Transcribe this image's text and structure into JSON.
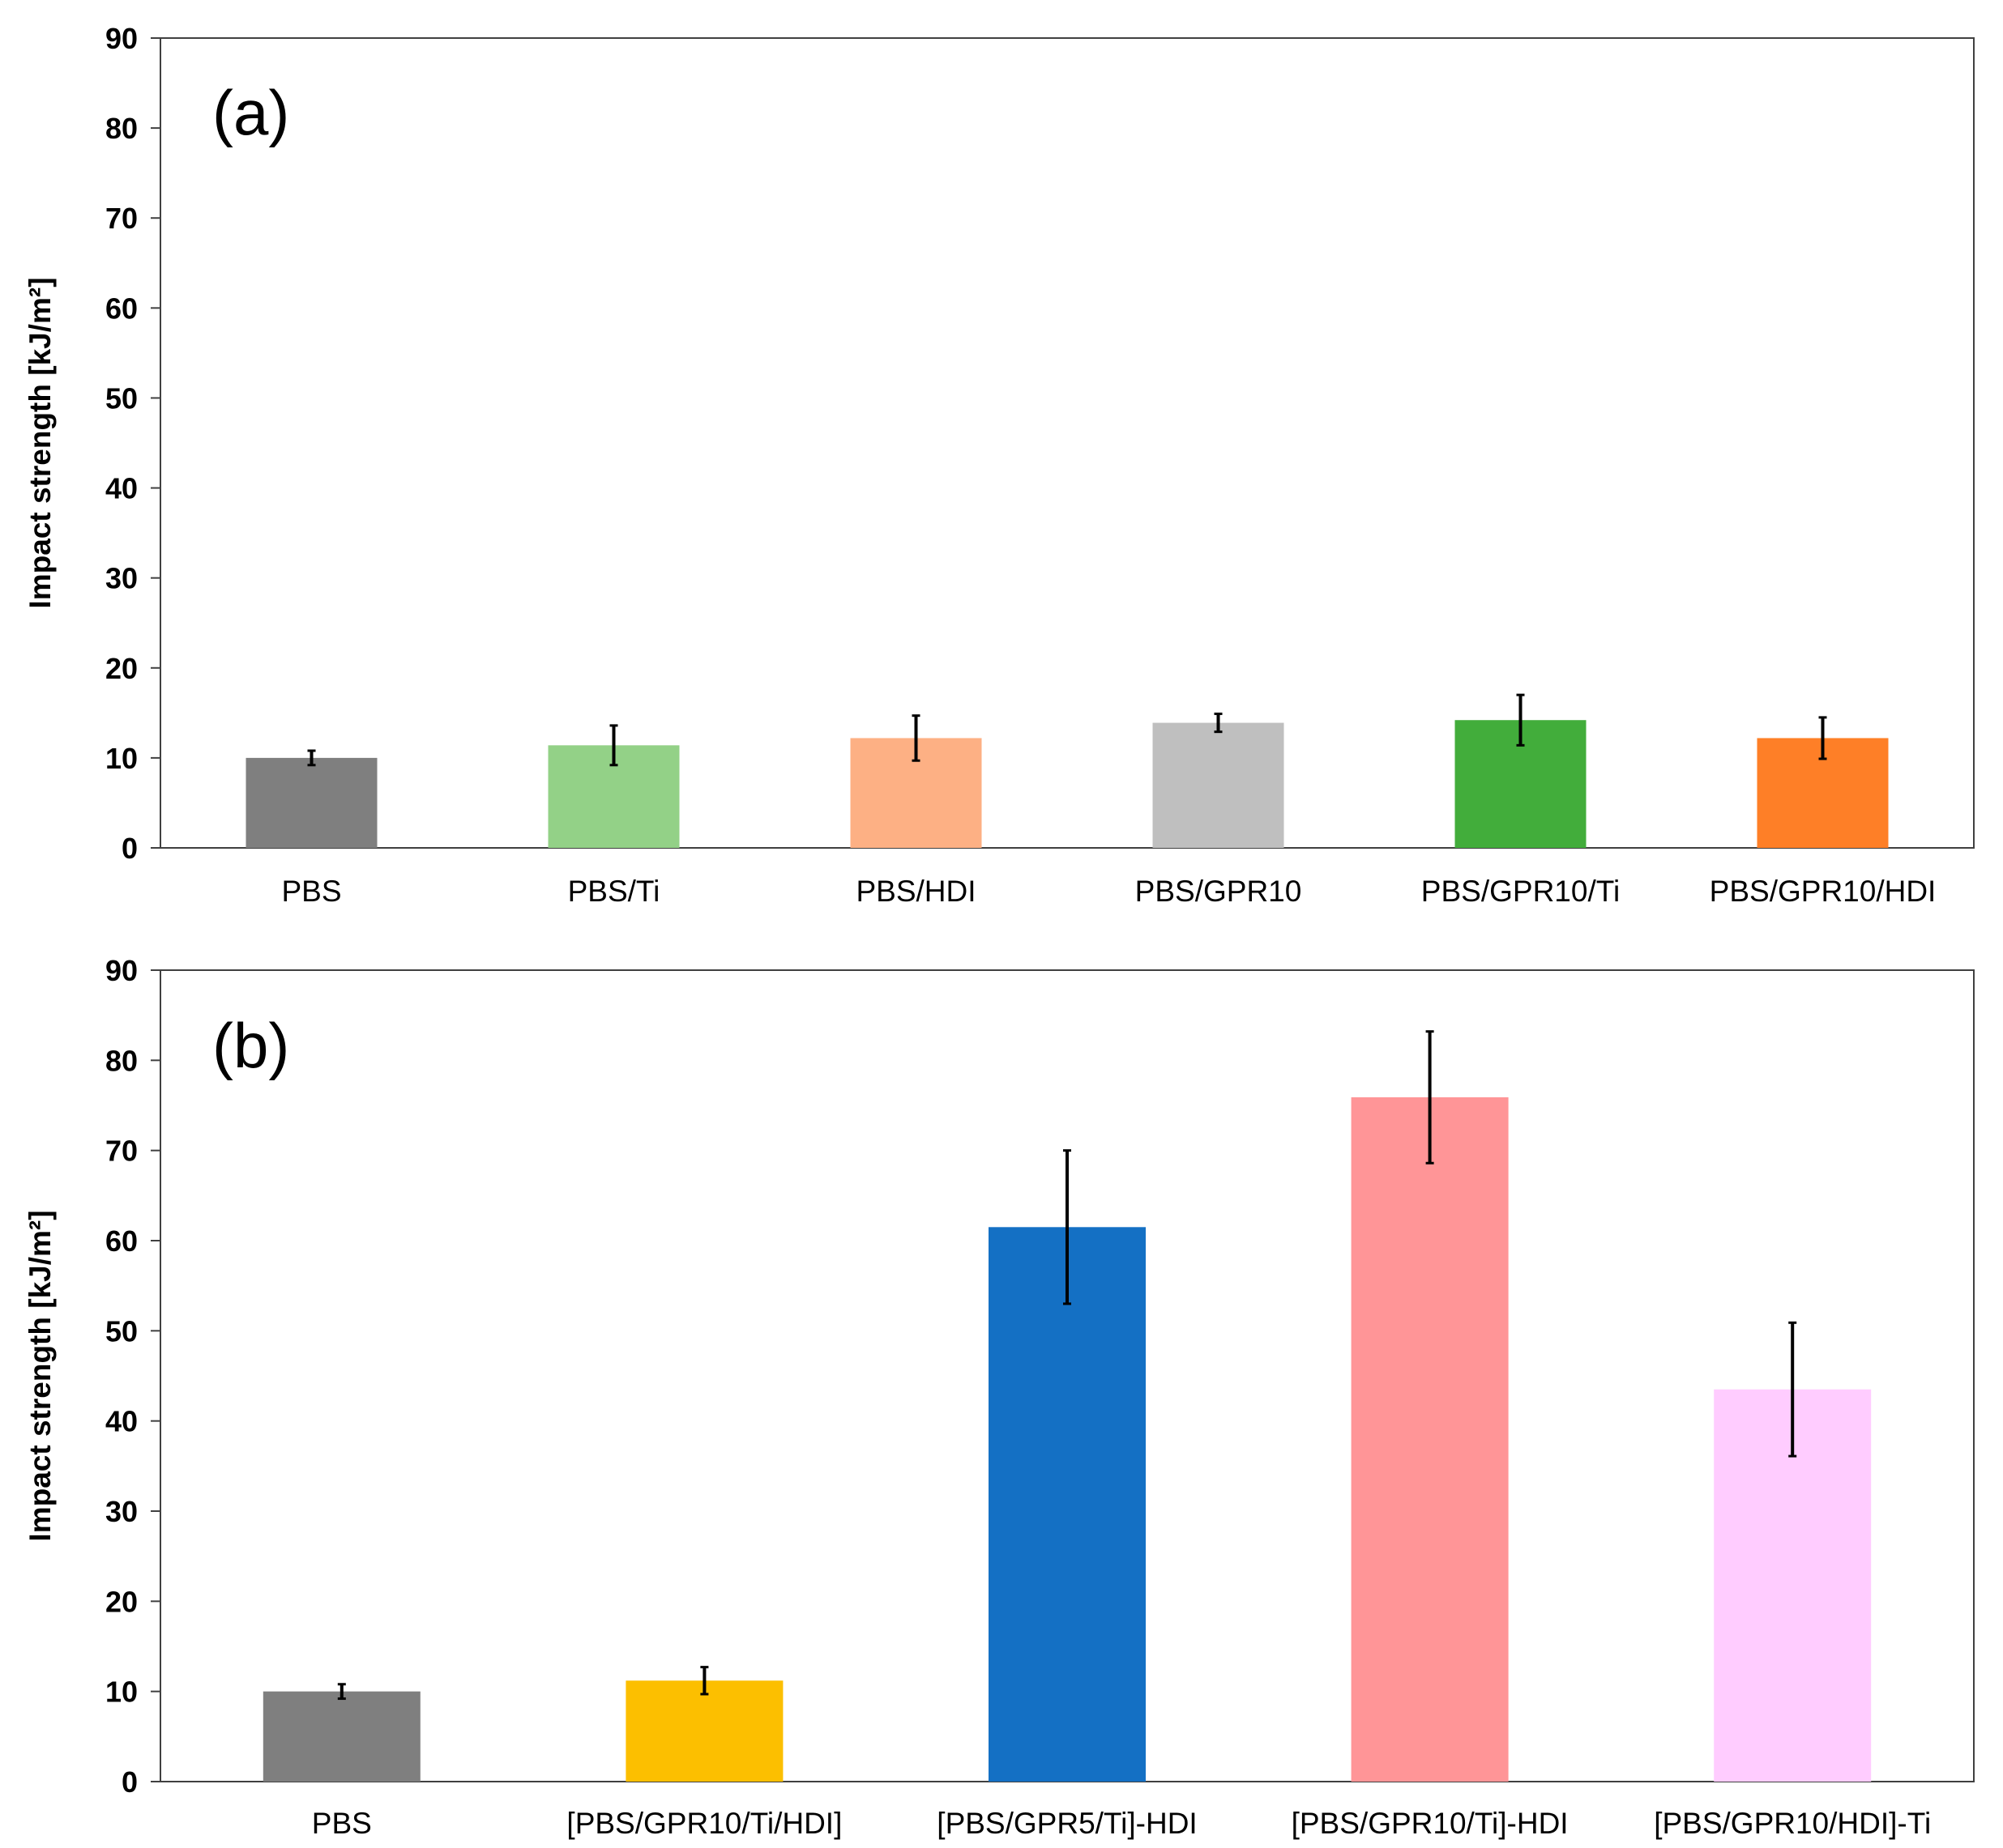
{
  "chart_data": [
    {
      "type": "bar",
      "panel_label": "(a)",
      "ylabel": "Impact strength [kJ/m²]",
      "xlabel": "",
      "ylim": [
        0,
        90
      ],
      "yticks": [
        0,
        10,
        20,
        30,
        40,
        50,
        60,
        70,
        80,
        90
      ],
      "grid": false,
      "categories": [
        "PBS",
        "PBS/Ti",
        "PBS/HDI",
        "PBS/GPR10",
        "PBS/GPR10/Ti",
        "PBS/GPR10/HDI"
      ],
      "values": [
        10.0,
        11.4,
        12.2,
        13.9,
        14.2,
        12.2
      ],
      "errors": [
        0.8,
        2.2,
        2.5,
        1.0,
        2.8,
        2.3
      ],
      "colors": [
        "#7f7f7f",
        "#93d187",
        "#fdb084",
        "#bfbfbf",
        "#42ad3b",
        "#fe7f27"
      ]
    },
    {
      "type": "bar",
      "panel_label": "(b)",
      "ylabel": "Impact strength [kJ/m²]",
      "xlabel": "",
      "ylim": [
        0,
        90
      ],
      "yticks": [
        0,
        10,
        20,
        30,
        40,
        50,
        60,
        70,
        80,
        90
      ],
      "grid": false,
      "categories": [
        "PBS",
        "[PBS/GPR10/Ti/HDI]",
        "[PBS/GPR5/Ti]-HDI",
        "[PBS/GPR10/Ti]-HDI",
        "[PBS/GPR10/HDI]-Ti"
      ],
      "values": [
        10.0,
        11.2,
        61.5,
        75.9,
        43.5
      ],
      "errors": [
        0.8,
        1.5,
        8.5,
        7.3,
        7.4
      ],
      "colors": [
        "#7f7f7f",
        "#fcbf00",
        "#1470c4",
        "#ff9597",
        "#ffccff"
      ]
    }
  ]
}
